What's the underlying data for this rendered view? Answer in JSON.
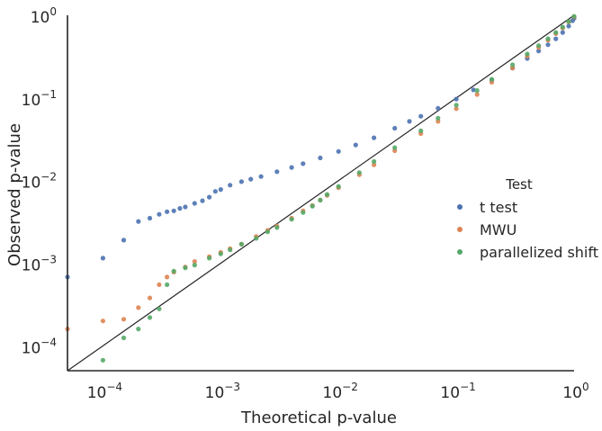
{
  "chart_data": {
    "type": "scatter",
    "title": "",
    "xlabel": "Theoretical p-value",
    "ylabel": "Observed p-value",
    "x_scale": "log",
    "y_scale": "log",
    "xlim": [
      5e-05,
      1
    ],
    "ylim": [
      5e-05,
      1
    ],
    "grid": false,
    "x_ticks": [
      {
        "value": 0.0001,
        "base": "10",
        "exp": "−4"
      },
      {
        "value": 0.001,
        "base": "10",
        "exp": "−3"
      },
      {
        "value": 0.01,
        "base": "10",
        "exp": "−2"
      },
      {
        "value": 0.1,
        "base": "10",
        "exp": "−1"
      },
      {
        "value": 1,
        "base": "10",
        "exp": "0"
      }
    ],
    "y_ticks": [
      {
        "value": 0.0001,
        "base": "10",
        "exp": "−4"
      },
      {
        "value": 0.001,
        "base": "10",
        "exp": "−3"
      },
      {
        "value": 0.01,
        "base": "10",
        "exp": "−2"
      },
      {
        "value": 0.1,
        "base": "10",
        "exp": "−1"
      },
      {
        "value": 1,
        "base": "10",
        "exp": "0"
      }
    ],
    "reference_line": {
      "x": [
        5e-05,
        1
      ],
      "y": [
        5e-05,
        1
      ],
      "color": "#262626"
    },
    "legend": {
      "title": "Test",
      "placement": "center-right"
    },
    "series": [
      {
        "name": "t test",
        "color": "#4c72b0",
        "points": [
          [
            5e-05,
            0.00068
          ],
          [
            0.0001,
            0.00115
          ],
          [
            0.00015,
            0.0019
          ],
          [
            0.0002,
            0.0032
          ],
          [
            0.00025,
            0.0035
          ],
          [
            0.0003,
            0.0039
          ],
          [
            0.00035,
            0.0042
          ],
          [
            0.0004,
            0.0043
          ],
          [
            0.00045,
            0.0046
          ],
          [
            0.0005,
            0.0048
          ],
          [
            0.0006,
            0.0053
          ],
          [
            0.0007,
            0.0057
          ],
          [
            0.0008,
            0.0063
          ],
          [
            0.0009,
            0.0074
          ],
          [
            0.001,
            0.0078
          ],
          [
            0.0012,
            0.0088
          ],
          [
            0.0015,
            0.0097
          ],
          [
            0.0018,
            0.0104
          ],
          [
            0.0022,
            0.0112
          ],
          [
            0.003,
            0.0128
          ],
          [
            0.004,
            0.0144
          ],
          [
            0.005,
            0.016
          ],
          [
            0.007,
            0.0188
          ],
          [
            0.01,
            0.0225
          ],
          [
            0.014,
            0.027
          ],
          [
            0.02,
            0.033
          ],
          [
            0.03,
            0.043
          ],
          [
            0.04,
            0.052
          ],
          [
            0.05,
            0.06
          ],
          [
            0.07,
            0.075
          ],
          [
            0.1,
            0.097
          ],
          [
            0.14,
            0.125
          ],
          [
            0.2,
            0.165
          ],
          [
            0.3,
            0.23
          ],
          [
            0.4,
            0.3
          ],
          [
            0.5,
            0.37
          ],
          [
            0.6,
            0.44
          ],
          [
            0.7,
            0.52
          ],
          [
            0.8,
            0.62
          ],
          [
            0.9,
            0.74
          ],
          [
            0.97,
            0.86
          ],
          [
            1,
            0.92
          ]
        ]
      },
      {
        "name": "MWU",
        "color": "#dd8452",
        "points": [
          [
            5e-05,
            0.00016
          ],
          [
            0.0001,
            0.0002
          ],
          [
            0.00015,
            0.00021
          ],
          [
            0.0002,
            0.00029
          ],
          [
            0.00025,
            0.00038
          ],
          [
            0.0003,
            0.00055
          ],
          [
            0.00035,
            0.00068
          ],
          [
            0.0004,
            0.00078
          ],
          [
            0.0005,
            0.0009
          ],
          [
            0.0006,
            0.00105
          ],
          [
            0.0008,
            0.0012
          ],
          [
            0.001,
            0.00135
          ],
          [
            0.0012,
            0.0015
          ],
          [
            0.0015,
            0.0017
          ],
          [
            0.002,
            0.0021
          ],
          [
            0.0025,
            0.0025
          ],
          [
            0.003,
            0.0028
          ],
          [
            0.004,
            0.0035
          ],
          [
            0.005,
            0.0043
          ],
          [
            0.006,
            0.005
          ],
          [
            0.007,
            0.0058
          ],
          [
            0.008,
            0.0066
          ],
          [
            0.01,
            0.0082
          ],
          [
            0.015,
            0.0118
          ],
          [
            0.02,
            0.0155
          ],
          [
            0.03,
            0.023
          ],
          [
            0.05,
            0.037
          ],
          [
            0.07,
            0.052
          ],
          [
            0.1,
            0.074
          ],
          [
            0.15,
            0.11
          ],
          [
            0.2,
            0.155
          ],
          [
            0.3,
            0.23
          ],
          [
            0.4,
            0.32
          ],
          [
            0.5,
            0.41
          ],
          [
            0.6,
            0.5
          ],
          [
            0.7,
            0.6
          ],
          [
            0.8,
            0.7
          ],
          [
            0.9,
            0.83
          ],
          [
            1,
            0.96
          ]
        ]
      },
      {
        "name": "parallelized shift",
        "color": "#55a868",
        "points": [
          [
            0.0001,
            6.7e-05
          ],
          [
            0.00015,
            0.000125
          ],
          [
            0.0002,
            0.00016
          ],
          [
            0.00025,
            0.00022
          ],
          [
            0.0003,
            0.00028
          ],
          [
            0.00035,
            0.00055
          ],
          [
            0.0004,
            0.0008
          ],
          [
            0.0005,
            0.00088
          ],
          [
            0.0006,
            0.00095
          ],
          [
            0.0008,
            0.00115
          ],
          [
            0.001,
            0.0013
          ],
          [
            0.0012,
            0.00145
          ],
          [
            0.0015,
            0.0017
          ],
          [
            0.002,
            0.002
          ],
          [
            0.0025,
            0.0024
          ],
          [
            0.003,
            0.0027
          ],
          [
            0.004,
            0.0034
          ],
          [
            0.005,
            0.0041
          ],
          [
            0.006,
            0.0049
          ],
          [
            0.007,
            0.0058
          ],
          [
            0.008,
            0.0068
          ],
          [
            0.01,
            0.0085
          ],
          [
            0.015,
            0.0125
          ],
          [
            0.02,
            0.017
          ],
          [
            0.03,
            0.025
          ],
          [
            0.05,
            0.04
          ],
          [
            0.07,
            0.057
          ],
          [
            0.1,
            0.082
          ],
          [
            0.15,
            0.123
          ],
          [
            0.2,
            0.168
          ],
          [
            0.3,
            0.252
          ],
          [
            0.4,
            0.34
          ],
          [
            0.5,
            0.43
          ],
          [
            0.6,
            0.52
          ],
          [
            0.7,
            0.62
          ],
          [
            0.8,
            0.72
          ],
          [
            0.9,
            0.84
          ],
          [
            1,
            0.97
          ]
        ]
      }
    ]
  }
}
